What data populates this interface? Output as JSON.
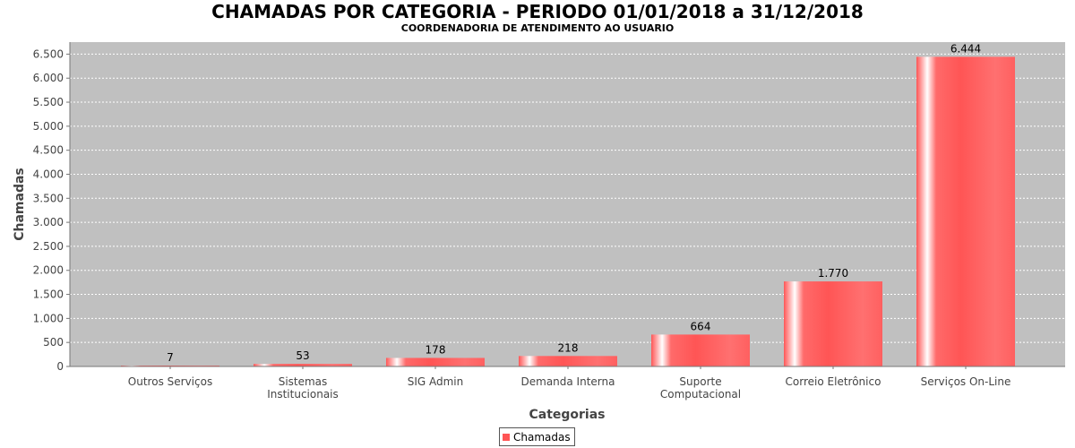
{
  "chart_data": {
    "type": "bar",
    "title": "CHAMADAS POR CATEGORIA - PERIODO 01/01/2018 a 31/12/2018",
    "subtitle": "COORDENADORIA DE ATENDIMENTO AO USUARIO",
    "xlabel": "Categorias",
    "ylabel": "Chamadas",
    "categories": [
      [
        "Outros Serviços"
      ],
      [
        "Sistemas",
        "Institucionais"
      ],
      [
        "SIG Admin"
      ],
      [
        "Demanda Interna"
      ],
      [
        "Suporte",
        "Computacional"
      ],
      [
        "Correio Eletrônico"
      ],
      [
        "Serviços On-Line"
      ]
    ],
    "series": [
      {
        "name": "Chamadas",
        "values": [
          7,
          53,
          178,
          218,
          664,
          1770,
          6444
        ],
        "value_labels": [
          "7",
          "53",
          "178",
          "218",
          "664",
          "1.770",
          "6.444"
        ]
      }
    ],
    "ylim": [
      0,
      6750
    ],
    "yticks": [
      0,
      500,
      1000,
      1500,
      2000,
      2500,
      3000,
      3500,
      4000,
      4500,
      5000,
      5500,
      6000,
      6500
    ],
    "ytick_labels": [
      "0",
      "500",
      "1.000",
      "1.500",
      "2.000",
      "2.500",
      "3.000",
      "3.500",
      "4.000",
      "4.500",
      "5.000",
      "5.500",
      "6.000",
      "6.500"
    ],
    "grid": true,
    "legend_position": "bottom-center",
    "colors": {
      "bar": "#ff5555",
      "bar_highlight": "#ffffff",
      "plot_background": "#c0c0c0",
      "grid": "#ffffff"
    }
  }
}
